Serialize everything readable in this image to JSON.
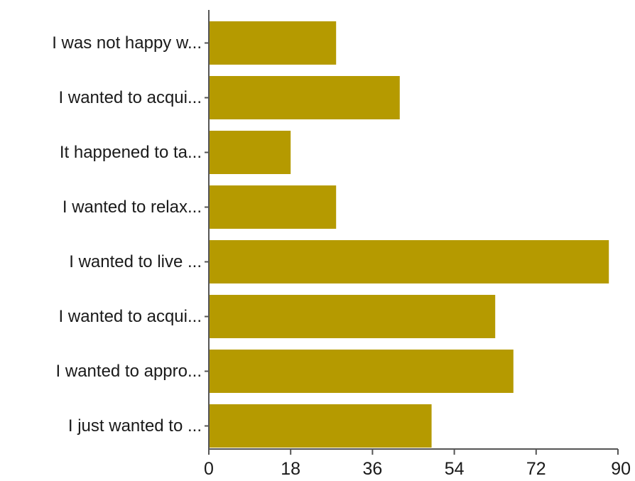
{
  "chart_data": {
    "type": "bar",
    "orientation": "horizontal",
    "title": "",
    "xlabel": "",
    "ylabel": "",
    "categories": [
      "I was not happy w...",
      "I wanted to acqui...",
      "It happened to ta...",
      "I wanted to relax...",
      "I wanted to live ...",
      "I wanted to acqui...",
      "I wanted to appro...",
      "I just wanted to ..."
    ],
    "values": [
      28,
      42,
      18,
      28,
      88,
      63,
      67,
      49
    ],
    "xlim": [
      0,
      90
    ],
    "xticks": [
      "0",
      "18",
      "36",
      "54",
      "72",
      "90"
    ],
    "bar_color": "#b59a00",
    "grid": false,
    "legend": "none"
  }
}
